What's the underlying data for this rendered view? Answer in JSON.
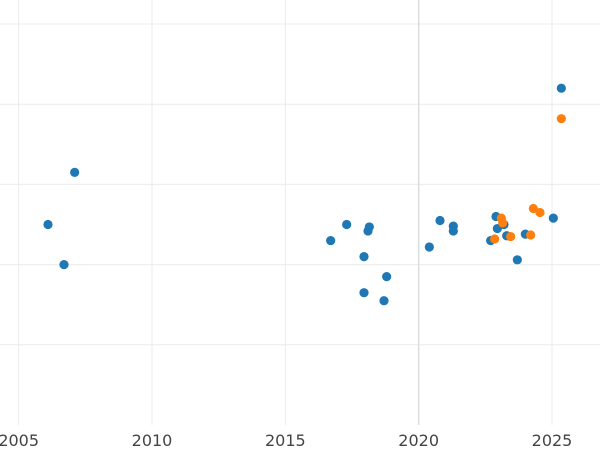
{
  "chart_data": {
    "type": "scatter",
    "title": "",
    "xlabel": "",
    "ylabel": "",
    "xlim": [
      2004.3,
      2026.8
    ],
    "ylim": [
      0,
      5.3
    ],
    "x_ticks": [
      2005,
      2010,
      2015,
      2020,
      2025
    ],
    "x_tick_labels": [
      "2005",
      "2010",
      "2015",
      "2020",
      "2025"
    ],
    "y_gridlines": [
      1,
      2,
      3,
      4,
      5
    ],
    "grid": true,
    "legend": "none",
    "series": [
      {
        "color": "#1f77b4",
        "points": [
          {
            "x": 2006.1,
            "y": 2.5
          },
          {
            "x": 2006.7,
            "y": 2.0
          },
          {
            "x": 2007.1,
            "y": 3.15
          },
          {
            "x": 2016.7,
            "y": 2.3
          },
          {
            "x": 2017.3,
            "y": 2.5
          },
          {
            "x": 2017.95,
            "y": 2.1
          },
          {
            "x": 2017.95,
            "y": 1.65
          },
          {
            "x": 2018.1,
            "y": 2.42
          },
          {
            "x": 2018.15,
            "y": 2.47
          },
          {
            "x": 2018.7,
            "y": 1.55
          },
          {
            "x": 2018.8,
            "y": 1.85
          },
          {
            "x": 2020.4,
            "y": 2.22
          },
          {
            "x": 2020.8,
            "y": 2.55
          },
          {
            "x": 2021.3,
            "y": 2.48
          },
          {
            "x": 2021.3,
            "y": 2.42
          },
          {
            "x": 2022.7,
            "y": 2.3
          },
          {
            "x": 2022.9,
            "y": 2.6
          },
          {
            "x": 2022.95,
            "y": 2.45
          },
          {
            "x": 2023.2,
            "y": 2.5
          },
          {
            "x": 2023.3,
            "y": 2.36
          },
          {
            "x": 2023.7,
            "y": 2.06
          },
          {
            "x": 2024.0,
            "y": 2.38
          },
          {
            "x": 2025.05,
            "y": 2.58
          },
          {
            "x": 2025.35,
            "y": 4.2
          }
        ]
      },
      {
        "color": "#ff7f0e",
        "points": [
          {
            "x": 2022.85,
            "y": 2.32
          },
          {
            "x": 2023.1,
            "y": 2.58
          },
          {
            "x": 2023.15,
            "y": 2.52
          },
          {
            "x": 2023.45,
            "y": 2.35
          },
          {
            "x": 2024.2,
            "y": 2.37
          },
          {
            "x": 2024.3,
            "y": 2.7
          },
          {
            "x": 2024.55,
            "y": 2.65
          },
          {
            "x": 2025.35,
            "y": 3.82
          }
        ]
      }
    ]
  }
}
